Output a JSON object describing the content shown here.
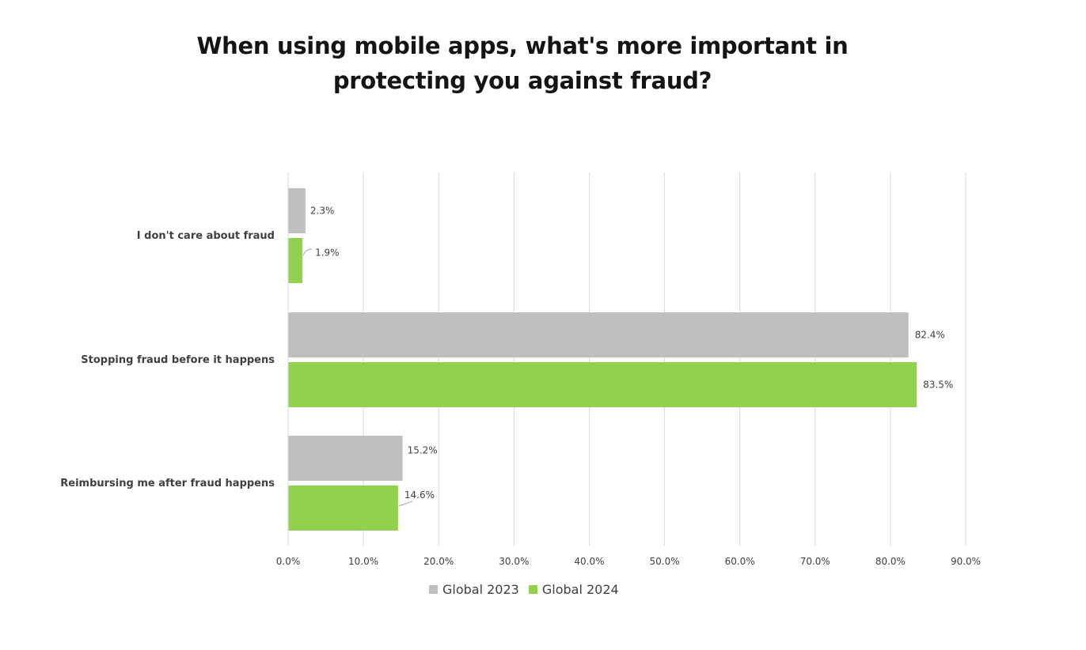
{
  "chart_data": {
    "type": "bar",
    "orientation": "horizontal",
    "title_lines": [
      "When using mobile apps, what's more important in",
      "protecting you against fraud?"
    ],
    "categories": [
      "I don't care about fraud",
      "Stopping fraud before it happens",
      "Reimbursing me after fraud happens"
    ],
    "series": [
      {
        "name": "Global 2023",
        "color": "#bfbfbf",
        "values": [
          2.3,
          82.4,
          15.2
        ],
        "labels": [
          "2.3%",
          "82.4%",
          "15.2%"
        ]
      },
      {
        "name": "Global 2024",
        "color": "#92d050",
        "values": [
          1.9,
          83.5,
          14.6
        ],
        "labels": [
          "1.9%",
          "83.5%",
          "14.6%"
        ]
      }
    ],
    "xlim": [
      0,
      90
    ],
    "x_ticks": [
      0,
      10,
      20,
      30,
      40,
      50,
      60,
      70,
      80,
      90
    ],
    "x_tick_labels": [
      "0.0%",
      "10.0%",
      "20.0%",
      "30.0%",
      "40.0%",
      "50.0%",
      "60.0%",
      "70.0%",
      "80.0%",
      "90.0%"
    ],
    "grid": true,
    "legend_position": "bottom"
  }
}
